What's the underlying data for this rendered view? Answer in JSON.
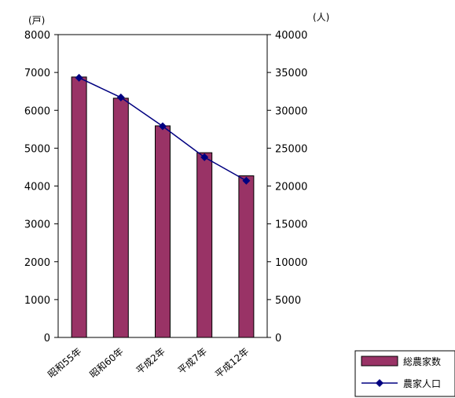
{
  "chart_data": {
    "type": "bar",
    "categories": [
      "昭和55年",
      "昭和60年",
      "平成2年",
      "平成7年",
      "平成12年"
    ],
    "left_axis": {
      "unit": "(戸)",
      "ylim": [
        0,
        8000
      ],
      "ticks": [
        "0",
        "1000",
        "2000",
        "3000",
        "4000",
        "5000",
        "6000",
        "7000",
        "8000"
      ]
    },
    "right_axis": {
      "unit": "(人)",
      "ylim": [
        0,
        40000
      ],
      "ticks": [
        "0",
        "5000",
        "10000",
        "15000",
        "20000",
        "25000",
        "30000",
        "35000",
        "40000"
      ]
    },
    "series": [
      {
        "name": "総農家数",
        "type": "bar",
        "axis": "left",
        "values": [
          6880,
          6320,
          5590,
          4880,
          4270
        ],
        "color": "#993366"
      },
      {
        "name": "農家人口",
        "type": "line",
        "axis": "right",
        "values": [
          34300,
          31700,
          27900,
          23800,
          20700
        ],
        "color": "#000080",
        "marker": "diamond"
      }
    ],
    "grid": false,
    "legend": "bottom-right"
  }
}
